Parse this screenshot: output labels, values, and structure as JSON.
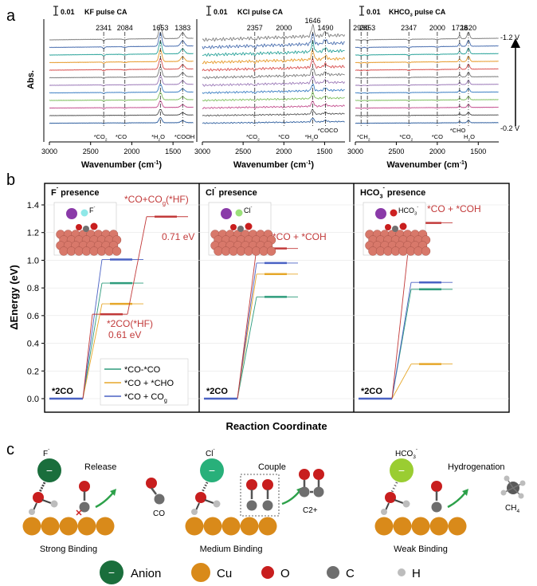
{
  "panel_labels": {
    "a": "a",
    "b": "b",
    "c": "c"
  },
  "colors": {
    "spectra": [
      "#7f7f7f",
      "#4a6fb0",
      "#2aa39a",
      "#e69a2a",
      "#d94f4f",
      "#7a7a7a",
      "#9c7ab8",
      "#3d7fc4",
      "#7fbf5f",
      "#c44f8f",
      "#555555",
      "#2f5f9f"
    ],
    "co_co": "#2e9c7c",
    "co_cho": "#e6a72a",
    "co_cog": "#4a62c4",
    "red": "#c23a3a",
    "cu": "#d98a1a",
    "o": "#c81e1e",
    "c": "#6e6e6e",
    "h": "#bdbdbd",
    "anion": "#1a6e3c",
    "cl": "#28b07a",
    "hco3": "#9acd32"
  },
  "ir": {
    "ylabel": "Abs.",
    "xlabel": "Wavenumber (cm",
    "xlabel_sup": "-1",
    "xlabel_end": ")",
    "scale_bar_label": "0.01",
    "panels": [
      {
        "title": "KF pulse CA",
        "top_labels": [
          {
            "x": 2341,
            "t": "2341"
          },
          {
            "x": 2084,
            "t": "2084"
          },
          {
            "x": 1653,
            "t": "1653"
          },
          {
            "x": 1383,
            "t": "1383"
          }
        ],
        "bottom_labels": [
          {
            "x": 2380,
            "t": "*CO",
            "sub": "2"
          },
          {
            "x": 2130,
            "t": "*CO",
            "sub": ""
          },
          {
            "x": 1680,
            "t": "*H",
            "sub": "2",
            "tail": "O"
          },
          {
            "x": 1360,
            "t": "*COOH",
            "sub": ""
          }
        ],
        "xticks": [
          3000,
          2500,
          2000,
          1500
        ]
      },
      {
        "title": "KCl pulse CA",
        "top_labels": [
          {
            "x": 2357,
            "t": "2357"
          },
          {
            "x": 2000,
            "t": "2000"
          },
          {
            "x": 1646,
            "t": "1646"
          },
          {
            "x": 1490,
            "t": "1490"
          }
        ],
        "bottom_labels": [
          {
            "x": 2380,
            "t": "*CO",
            "sub": "2"
          },
          {
            "x": 2000,
            "t": "*CO",
            "sub": ""
          },
          {
            "x": 1660,
            "t": "*H",
            "sub": "2",
            "tail": "O"
          },
          {
            "x": 1460,
            "t": "*COCO",
            "sub": ""
          }
        ],
        "xticks": [
          3000,
          2500,
          2000,
          1500
        ]
      },
      {
        "title": "KHCO",
        "title_sub": "3",
        "title_tail": " pulse CA",
        "top_labels": [
          {
            "x": 2930,
            "t": "2930"
          },
          {
            "x": 2853,
            "t": "2853"
          },
          {
            "x": 2347,
            "t": "2347"
          },
          {
            "x": 2000,
            "t": "2000"
          },
          {
            "x": 1728,
            "t": "1728"
          },
          {
            "x": 1620,
            "t": "1620"
          }
        ],
        "bottom_labels": [
          {
            "x": 2900,
            "t": "*CH",
            "sub": "2"
          },
          {
            "x": 2380,
            "t": "*CO",
            "sub": "2"
          },
          {
            "x": 2000,
            "t": "*CO",
            "sub": ""
          },
          {
            "x": 1750,
            "t": "*CHO",
            "sub": ""
          },
          {
            "x": 1610,
            "t": "H",
            "sub": "2",
            "tail": "O"
          }
        ],
        "xticks": [
          3000,
          2500,
          2000,
          1500
        ]
      }
    ],
    "voltage_top": "-1.2 V",
    "voltage_bottom": "-0.2 V"
  },
  "chart_data": {
    "type": "line",
    "ylabel": "ΔEnergy (eV)",
    "xlabel": "Reaction Coordinate",
    "ylim": [
      0,
      1.4
    ],
    "yticks": [
      "0.0",
      "0.2",
      "0.4",
      "0.6",
      "0.8",
      "1.0",
      "1.2",
      "1.4"
    ],
    "panels": [
      {
        "title": "F",
        "title_sup": "-",
        "title_tail": " presence",
        "start_label": "*2CO",
        "series": [
          {
            "name": "*CO-*CO",
            "color_key": "co_co",
            "values": [
              0.0,
              0.835
            ]
          },
          {
            "name": "*CO + *CHO",
            "color_key": "co_cho",
            "values": [
              0.0,
              0.685
            ]
          },
          {
            "name": "*CO + CO",
            "name_sub": "g",
            "color_key": "co_cog",
            "values": [
              0.0,
              1.005
            ]
          },
          {
            "name": "*2CO(*HF)",
            "color_key": "red",
            "values": [
              0.0,
              0.61,
              1.315
            ]
          }
        ],
        "annotations": {
          "upper": "*CO+CO",
          "upper_sub": "g",
          "upper_tail": "(*HF)",
          "upper_ev": "0.71 eV",
          "lower": "*2CO(*HF)",
          "lower_ev": "0.61 eV"
        },
        "inset_ion": "F",
        "inset_ion_sup": "-"
      },
      {
        "title": "Cl",
        "title_sup": "-",
        "title_tail": " presence",
        "start_label": "*2CO",
        "series": [
          {
            "name": "*CO-*CO",
            "color_key": "co_co",
            "values": [
              0.0,
              0.735
            ]
          },
          {
            "name": "*CO + *CHO",
            "color_key": "co_cho",
            "values": [
              0.0,
              0.9
            ]
          },
          {
            "name": "*CO + CO",
            "name_sub": "g",
            "color_key": "co_cog",
            "values": [
              0.0,
              0.98
            ]
          },
          {
            "name": "*CO + *COH",
            "color_key": "red",
            "values": [
              0.0,
              1.085
            ]
          }
        ],
        "annotations": {
          "upper": "*CO + *COH"
        },
        "inset_ion": "Cl",
        "inset_ion_sup": "-"
      },
      {
        "title": "HCO",
        "title_sub": "3",
        "title_sup": "-",
        "title_tail": " presence",
        "start_label": "*2CO",
        "series": [
          {
            "name": "*CO-*CO",
            "color_key": "co_co",
            "values": [
              0.0,
              0.79
            ]
          },
          {
            "name": "*CO + *CHO",
            "color_key": "co_cho",
            "values": [
              0.0,
              0.25
            ]
          },
          {
            "name": "*CO + CO",
            "name_sub": "g",
            "color_key": "co_cog",
            "values": [
              0.0,
              0.84
            ]
          },
          {
            "name": "*CO + *COH",
            "color_key": "red",
            "values": [
              0.0,
              1.27
            ]
          }
        ],
        "annotations": {
          "upper": "*CO + *COH"
        },
        "inset_ion": "HCO",
        "inset_ion_sub": "3",
        "inset_ion_sup": "-"
      }
    ],
    "legend": [
      {
        "label": "*CO-*CO",
        "color_key": "co_co"
      },
      {
        "label": "*CO + *CHO",
        "color_key": "co_cho"
      },
      {
        "label": "*CO + CO",
        "sub": "g",
        "color_key": "co_cog"
      }
    ]
  },
  "mechanism": {
    "panels": [
      {
        "ion": "F",
        "ion_sup": "-",
        "action": "Release",
        "product": "CO",
        "binding": "Strong Binding"
      },
      {
        "ion": "Cl",
        "ion_sup": "-",
        "action": "Couple",
        "product": "C2+",
        "binding": "Medium Binding"
      },
      {
        "ion": "HCO",
        "ion_sub": "3",
        "ion_sup": "-",
        "action": "Hydrogenation",
        "product": "CH",
        "product_sub": "4",
        "binding": "Weak Binding"
      }
    ],
    "minus_sign": "−",
    "legend": [
      {
        "label": "Anion",
        "color_key": "anion"
      },
      {
        "label": "Cu",
        "color_key": "cu"
      },
      {
        "label": "O",
        "color_key": "o"
      },
      {
        "label": "C",
        "color_key": "c"
      },
      {
        "label": "H",
        "color_key": "h"
      }
    ]
  }
}
